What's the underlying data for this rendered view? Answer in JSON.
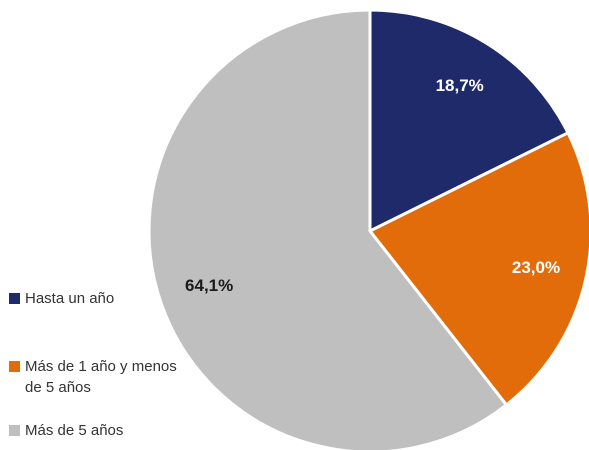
{
  "chart_data": {
    "type": "pie",
    "categories": [
      "Hasta un año",
      "Más de 1 año y menos de 5 años",
      "Más de 5 años"
    ],
    "values": [
      18.7,
      23.0,
      64.1
    ],
    "value_labels": [
      "18,7%",
      "23,0%",
      "64,1%"
    ],
    "colors": [
      "#1f2a6b",
      "#e36c0a",
      "#bfbfbf"
    ]
  }
}
